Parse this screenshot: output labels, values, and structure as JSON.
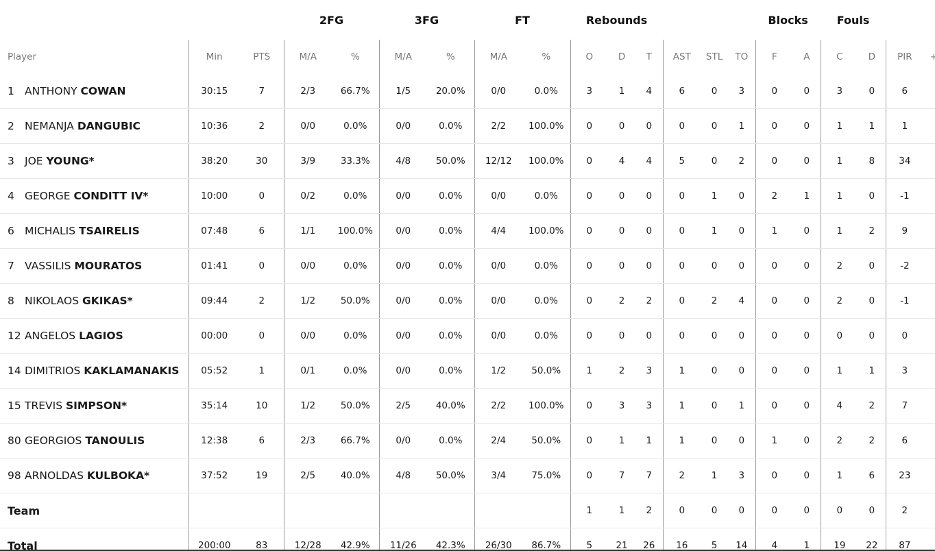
{
  "groups": {
    "fg2": "2FG",
    "fg3": "3FG",
    "ft": "FT",
    "rebounds": "Rebounds",
    "blocks": "Blocks",
    "fouls": "Fouls"
  },
  "columns": {
    "player": "Player",
    "min": "Min",
    "pts": "PTS",
    "fg2_ma": "M/A",
    "fg2_pct": "%",
    "fg3_ma": "M/A",
    "fg3_pct": "%",
    "ft_ma": "M/A",
    "ft_pct": "%",
    "reb_o": "O",
    "reb_d": "D",
    "reb_t": "T",
    "ast": "AST",
    "stl": "STL",
    "to": "TO",
    "blk_f": "F",
    "blk_a": "A",
    "foul_c": "C",
    "foul_d": "D",
    "pir": "PIR",
    "pm": "+/-"
  },
  "players": [
    {
      "num": "1",
      "first": "ANTHONY",
      "last": "COWAN",
      "min": "30:15",
      "pts": "7",
      "fg2_ma": "2/3",
      "fg2_pct": "66.7%",
      "fg3_ma": "1/5",
      "fg3_pct": "20.0%",
      "ft_ma": "0/0",
      "ft_pct": "0.0%",
      "reb_o": "3",
      "reb_d": "1",
      "reb_t": "4",
      "ast": "6",
      "stl": "0",
      "to": "3",
      "blk_f": "0",
      "blk_a": "0",
      "foul_c": "3",
      "foul_d": "0",
      "pir": "6",
      "pm": ""
    },
    {
      "num": "2",
      "first": "NEMANJA",
      "last": "DANGUBIC",
      "min": "10:36",
      "pts": "2",
      "fg2_ma": "0/0",
      "fg2_pct": "0.0%",
      "fg3_ma": "0/0",
      "fg3_pct": "0.0%",
      "ft_ma": "2/2",
      "ft_pct": "100.0%",
      "reb_o": "0",
      "reb_d": "0",
      "reb_t": "0",
      "ast": "0",
      "stl": "0",
      "to": "1",
      "blk_f": "0",
      "blk_a": "0",
      "foul_c": "1",
      "foul_d": "1",
      "pir": "1",
      "pm": ""
    },
    {
      "num": "3",
      "first": "JOE",
      "last": "YOUNG*",
      "min": "38:20",
      "pts": "30",
      "fg2_ma": "3/9",
      "fg2_pct": "33.3%",
      "fg3_ma": "4/8",
      "fg3_pct": "50.0%",
      "ft_ma": "12/12",
      "ft_pct": "100.0%",
      "reb_o": "0",
      "reb_d": "4",
      "reb_t": "4",
      "ast": "5",
      "stl": "0",
      "to": "2",
      "blk_f": "0",
      "blk_a": "0",
      "foul_c": "1",
      "foul_d": "8",
      "pir": "34",
      "pm": ""
    },
    {
      "num": "4",
      "first": "GEORGE",
      "last": "CONDITT IV*",
      "min": "10:00",
      "pts": "0",
      "fg2_ma": "0/2",
      "fg2_pct": "0.0%",
      "fg3_ma": "0/0",
      "fg3_pct": "0.0%",
      "ft_ma": "0/0",
      "ft_pct": "0.0%",
      "reb_o": "0",
      "reb_d": "0",
      "reb_t": "0",
      "ast": "0",
      "stl": "1",
      "to": "0",
      "blk_f": "2",
      "blk_a": "1",
      "foul_c": "1",
      "foul_d": "0",
      "pir": "-1",
      "pm": ""
    },
    {
      "num": "6",
      "first": "MICHALIS",
      "last": "TSAIRELIS",
      "min": "07:48",
      "pts": "6",
      "fg2_ma": "1/1",
      "fg2_pct": "100.0%",
      "fg3_ma": "0/0",
      "fg3_pct": "0.0%",
      "ft_ma": "4/4",
      "ft_pct": "100.0%",
      "reb_o": "0",
      "reb_d": "0",
      "reb_t": "0",
      "ast": "0",
      "stl": "1",
      "to": "0",
      "blk_f": "1",
      "blk_a": "0",
      "foul_c": "1",
      "foul_d": "2",
      "pir": "9",
      "pm": ""
    },
    {
      "num": "7",
      "first": "VASSILIS",
      "last": "MOURATOS",
      "min": "01:41",
      "pts": "0",
      "fg2_ma": "0/0",
      "fg2_pct": "0.0%",
      "fg3_ma": "0/0",
      "fg3_pct": "0.0%",
      "ft_ma": "0/0",
      "ft_pct": "0.0%",
      "reb_o": "0",
      "reb_d": "0",
      "reb_t": "0",
      "ast": "0",
      "stl": "0",
      "to": "0",
      "blk_f": "0",
      "blk_a": "0",
      "foul_c": "2",
      "foul_d": "0",
      "pir": "-2",
      "pm": ""
    },
    {
      "num": "8",
      "first": "NIKOLAOS",
      "last": "GKIKAS*",
      "min": "09:44",
      "pts": "2",
      "fg2_ma": "1/2",
      "fg2_pct": "50.0%",
      "fg3_ma": "0/0",
      "fg3_pct": "0.0%",
      "ft_ma": "0/0",
      "ft_pct": "0.0%",
      "reb_o": "0",
      "reb_d": "2",
      "reb_t": "2",
      "ast": "0",
      "stl": "2",
      "to": "4",
      "blk_f": "0",
      "blk_a": "0",
      "foul_c": "2",
      "foul_d": "0",
      "pir": "-1",
      "pm": ""
    },
    {
      "num": "12",
      "first": "ANGELOS",
      "last": "LAGIOS",
      "min": "00:00",
      "pts": "0",
      "fg2_ma": "0/0",
      "fg2_pct": "0.0%",
      "fg3_ma": "0/0",
      "fg3_pct": "0.0%",
      "ft_ma": "0/0",
      "ft_pct": "0.0%",
      "reb_o": "0",
      "reb_d": "0",
      "reb_t": "0",
      "ast": "0",
      "stl": "0",
      "to": "0",
      "blk_f": "0",
      "blk_a": "0",
      "foul_c": "0",
      "foul_d": "0",
      "pir": "0",
      "pm": ""
    },
    {
      "num": "14",
      "first": "DIMITRIOS",
      "last": "KAKLAMANAKIS",
      "min": "05:52",
      "pts": "1",
      "fg2_ma": "0/1",
      "fg2_pct": "0.0%",
      "fg3_ma": "0/0",
      "fg3_pct": "0.0%",
      "ft_ma": "1/2",
      "ft_pct": "50.0%",
      "reb_o": "1",
      "reb_d": "2",
      "reb_t": "3",
      "ast": "1",
      "stl": "0",
      "to": "0",
      "blk_f": "0",
      "blk_a": "0",
      "foul_c": "1",
      "foul_d": "1",
      "pir": "3",
      "pm": ""
    },
    {
      "num": "15",
      "first": "TREVIS",
      "last": "SIMPSON*",
      "min": "35:14",
      "pts": "10",
      "fg2_ma": "1/2",
      "fg2_pct": "50.0%",
      "fg3_ma": "2/5",
      "fg3_pct": "40.0%",
      "ft_ma": "2/2",
      "ft_pct": "100.0%",
      "reb_o": "0",
      "reb_d": "3",
      "reb_t": "3",
      "ast": "1",
      "stl": "0",
      "to": "1",
      "blk_f": "0",
      "blk_a": "0",
      "foul_c": "4",
      "foul_d": "2",
      "pir": "7",
      "pm": ""
    },
    {
      "num": "80",
      "first": "GEORGIOS",
      "last": "TANOULIS",
      "min": "12:38",
      "pts": "6",
      "fg2_ma": "2/3",
      "fg2_pct": "66.7%",
      "fg3_ma": "0/0",
      "fg3_pct": "0.0%",
      "ft_ma": "2/4",
      "ft_pct": "50.0%",
      "reb_o": "0",
      "reb_d": "1",
      "reb_t": "1",
      "ast": "1",
      "stl": "0",
      "to": "0",
      "blk_f": "1",
      "blk_a": "0",
      "foul_c": "2",
      "foul_d": "2",
      "pir": "6",
      "pm": ""
    },
    {
      "num": "98",
      "first": "ARNOLDAS",
      "last": "KULBOKA*",
      "min": "37:52",
      "pts": "19",
      "fg2_ma": "2/5",
      "fg2_pct": "40.0%",
      "fg3_ma": "4/8",
      "fg3_pct": "50.0%",
      "ft_ma": "3/4",
      "ft_pct": "75.0%",
      "reb_o": "0",
      "reb_d": "7",
      "reb_t": "7",
      "ast": "2",
      "stl": "1",
      "to": "3",
      "blk_f": "0",
      "blk_a": "0",
      "foul_c": "1",
      "foul_d": "6",
      "pir": "23",
      "pm": ""
    }
  ],
  "team": {
    "label": "Team",
    "min": "",
    "pts": "",
    "fg2_ma": "",
    "fg2_pct": "",
    "fg3_ma": "",
    "fg3_pct": "",
    "ft_ma": "",
    "ft_pct": "",
    "reb_o": "1",
    "reb_d": "1",
    "reb_t": "2",
    "ast": "0",
    "stl": "0",
    "to": "0",
    "blk_f": "0",
    "blk_a": "0",
    "foul_c": "0",
    "foul_d": "0",
    "pir": "2",
    "pm": ""
  },
  "total": {
    "label": "Total",
    "min": "200:00",
    "pts": "83",
    "fg2_ma": "12/28",
    "fg2_pct": "42.9%",
    "fg3_ma": "11/26",
    "fg3_pct": "42.3%",
    "ft_ma": "26/30",
    "ft_pct": "86.7%",
    "reb_o": "5",
    "reb_d": "21",
    "reb_t": "26",
    "ast": "16",
    "stl": "5",
    "to": "14",
    "blk_f": "4",
    "blk_a": "1",
    "foul_c": "19",
    "foul_d": "22",
    "pir": "87",
    "pm": ""
  }
}
